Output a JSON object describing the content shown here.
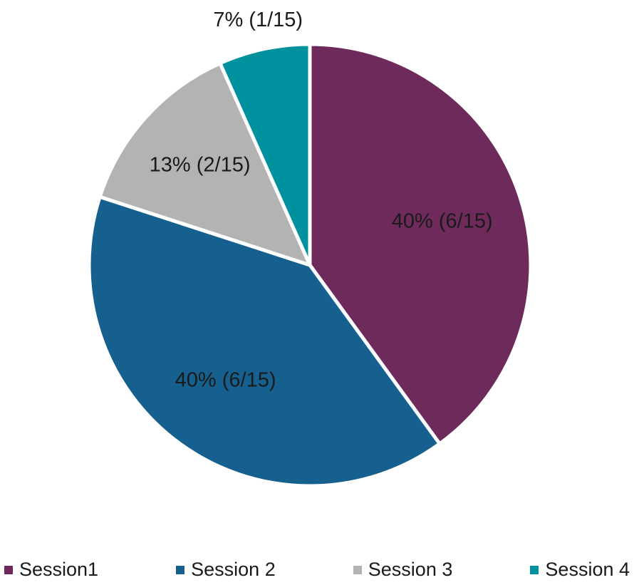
{
  "chart_data": {
    "type": "pie",
    "title": "",
    "categories": [
      "Session1",
      "Session 2",
      "Session 3",
      "Session 4"
    ],
    "values": [
      6,
      6,
      2,
      1
    ],
    "total": 15,
    "percentages": [
      40,
      40,
      13,
      7
    ],
    "labels": [
      "40% (6/15)",
      "40% (6/15)",
      "13% (2/15)",
      "7% (1/15)"
    ],
    "colors": [
      "#6e2a5b",
      "#15608f",
      "#b3b3b3",
      "#00919e"
    ],
    "label_radius": [
      0.63,
      0.65,
      0.67,
      1.13
    ],
    "start_angle_deg": 0,
    "direction": "clockwise",
    "legend_position": "bottom",
    "slice_separator_color": "#ffffff"
  },
  "legend": {
    "items": [
      {
        "label": "Session1",
        "color": "#6e2a5b"
      },
      {
        "label": "Session 2",
        "color": "#15608f"
      },
      {
        "label": "Session 3",
        "color": "#b3b3b3"
      },
      {
        "label": "Session 4",
        "color": "#00919e"
      }
    ]
  }
}
